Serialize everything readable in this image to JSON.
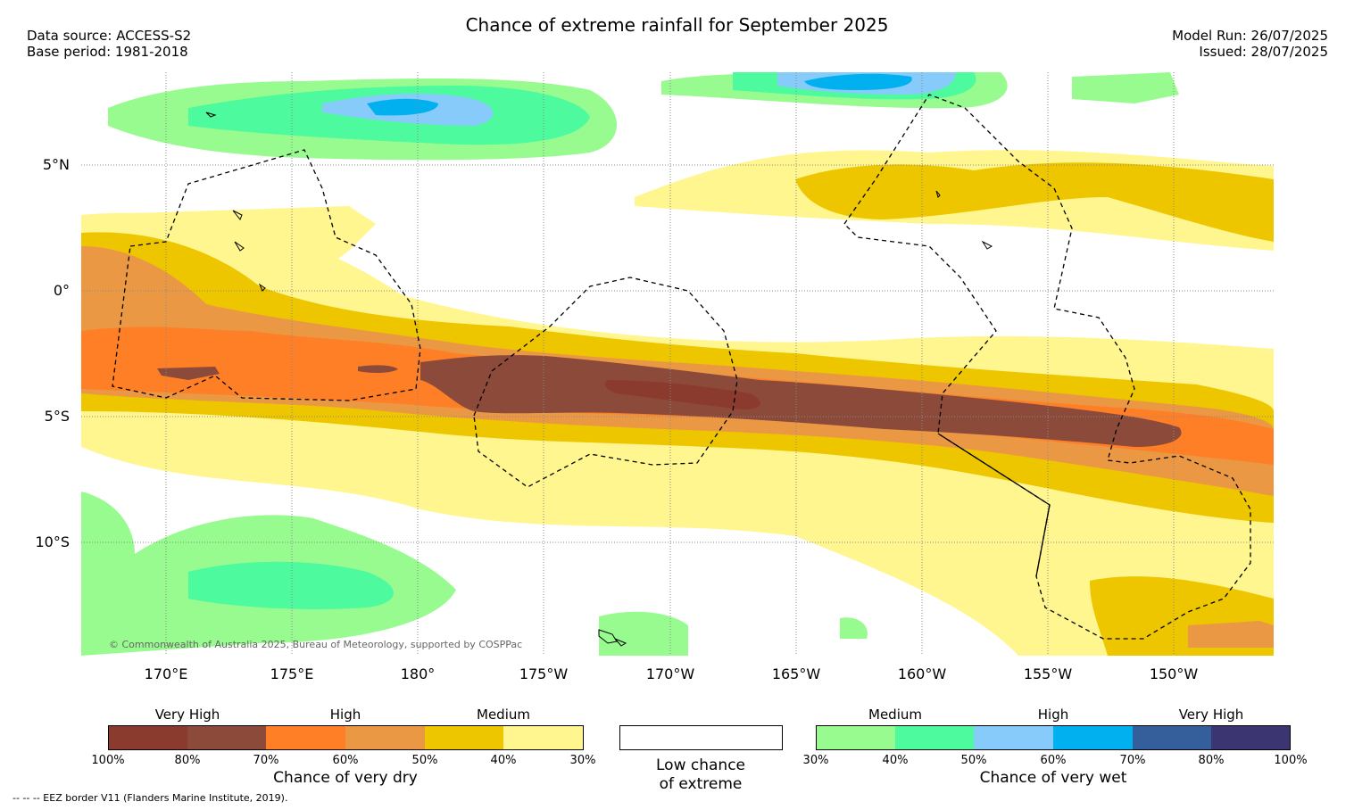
{
  "header": {
    "title": "Chance of extreme rainfall for September 2025",
    "data_source": "Data source: ACCESS-S2",
    "base_period": "Base period: 1981-2018",
    "model_run": "Model Run: 26/07/2025",
    "issued": "Issued: 28/07/2025"
  },
  "map": {
    "lat_labels": [
      "5°N",
      "0°",
      "5°S",
      "10°S"
    ],
    "lon_labels": [
      "170°E",
      "175°E",
      "180°",
      "175°W",
      "170°W",
      "165°W",
      "160°W",
      "155°W",
      "150°W"
    ],
    "copyright": "© Commonwealth of Australia 2025, Bureau of Meteorology, supported by COSPPac"
  },
  "legend": {
    "dry": {
      "title": "Chance of very dry",
      "categories": [
        "Very High",
        "High",
        "Medium"
      ],
      "ticks": [
        "100%",
        "80%",
        "70%",
        "60%",
        "50%",
        "40%",
        "30%"
      ],
      "colors": [
        "#8b3a2e",
        "#8b4a3a",
        "#ff7f27",
        "#eb9845",
        "#edc600",
        "#fff68f"
      ]
    },
    "neutral": {
      "title_line1": "Low chance",
      "title_line2": "of extreme",
      "color": "#ffffff"
    },
    "wet": {
      "title": "Chance of very wet",
      "categories": [
        "Medium",
        "High",
        "Very High"
      ],
      "ticks": [
        "30%",
        "40%",
        "50%",
        "60%",
        "70%",
        "80%",
        "100%"
      ],
      "colors": [
        "#98fb8f",
        "#4dfa9e",
        "#87cbfa",
        "#00b0ef",
        "#355f9a",
        "#3b3671"
      ]
    }
  },
  "footnote": "--  --  -- EEZ border V11 (Flanders Marine Institute, 2019)."
}
